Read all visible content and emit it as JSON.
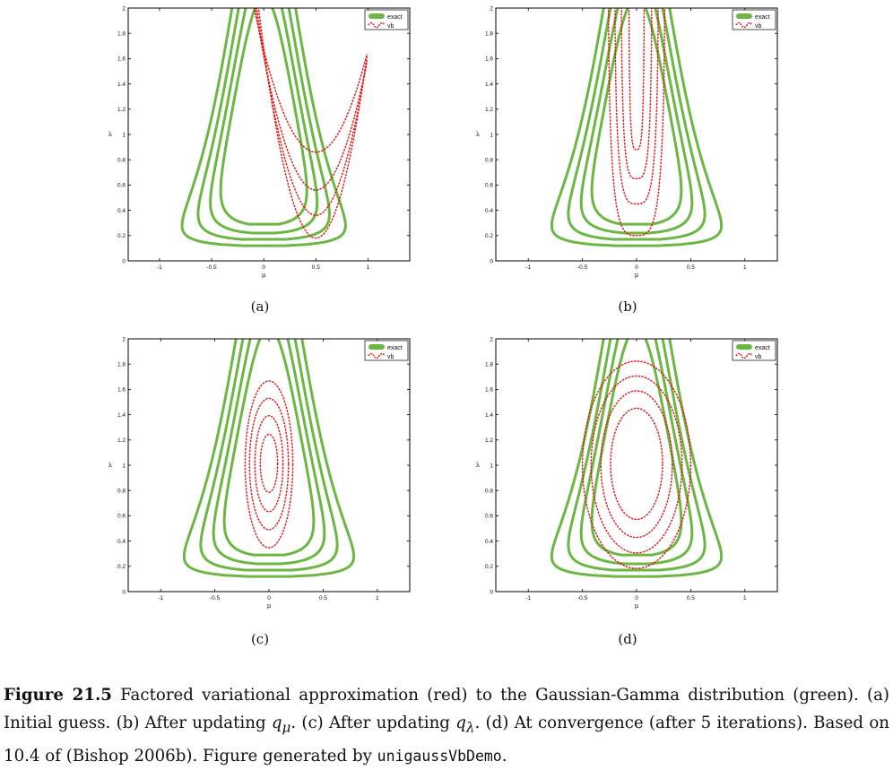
{
  "figure": {
    "colors": {
      "exact": "#6cb644",
      "vb": "#e01818",
      "axis": "#000000"
    },
    "panels": [
      {
        "label": "(a)",
        "xlabel": "μ",
        "ylabel": "λ",
        "xticks": [
          "-1",
          "-0.5",
          "0",
          "0.5",
          "1"
        ],
        "yticks": [
          "0",
          "0.2",
          "0.4",
          "0.6",
          "0.8",
          "1",
          "1.2",
          "1.4",
          "1.6",
          "1.8",
          "2"
        ],
        "legend": [
          "exact",
          "vb"
        ],
        "chart_data": {
          "type": "contour",
          "xlim": [
            -1.3,
            1.4
          ],
          "ylim": [
            0,
            2
          ],
          "exact": {
            "mode_lambda": 0.9,
            "levels": [
              0.35,
              0.45,
              0.55,
              0.65
            ],
            "mu0": 0,
            "kappa": 1
          },
          "vb": {
            "shape": "u-curves",
            "min_mu": 0.5,
            "min_lambda": [
              0.18,
              0.36,
              0.56,
              0.86
            ],
            "x_end": 1.0
          }
        }
      },
      {
        "label": "(b)",
        "xlabel": "μ",
        "ylabel": "λ",
        "xticks": [
          "-1",
          "-0.5",
          "0",
          "0.5",
          "1"
        ],
        "yticks": [
          "0",
          "0.2",
          "0.4",
          "0.6",
          "0.8",
          "1",
          "1.2",
          "1.4",
          "1.6",
          "1.8",
          "2"
        ],
        "legend": [
          "exact",
          "vb"
        ],
        "chart_data": {
          "type": "contour",
          "xlim": [
            -1.3,
            1.3
          ],
          "ylim": [
            0,
            2
          ],
          "exact": {
            "mode_lambda": 0.9,
            "levels": [
              0.35,
              0.45,
              0.55,
              0.65
            ],
            "mu0": 0,
            "kappa": 1
          },
          "vb": {
            "shape": "narrow-u",
            "min_lambda": [
              0.2,
              0.45,
              0.65,
              0.88
            ],
            "halfwidth": [
              0.26,
              0.2,
              0.14,
              0.07
            ]
          }
        }
      },
      {
        "label": "(c)",
        "xlabel": "μ",
        "ylabel": "λ",
        "xticks": [
          "-1",
          "-0.5",
          "0",
          "0.5",
          "1"
        ],
        "yticks": [
          "0",
          "0.2",
          "0.4",
          "0.6",
          "0.8",
          "1",
          "1.2",
          "1.4",
          "1.6",
          "1.8",
          "2"
        ],
        "legend": [
          "exact",
          "vb"
        ],
        "chart_data": {
          "type": "contour",
          "xlim": [
            -1.3,
            1.3
          ],
          "ylim": [
            0,
            2
          ],
          "exact": {
            "mode_lambda": 0.9,
            "levels": [
              0.35,
              0.45,
              0.55,
              0.65
            ],
            "mu0": 0,
            "kappa": 1
          },
          "vb": {
            "shape": "ellipse",
            "center_lambda": 1.0,
            "ellipses": [
              [
                0.22,
                0.66
              ],
              [
                0.18,
                0.52
              ],
              [
                0.13,
                0.38
              ],
              [
                0.08,
                0.23
              ]
            ]
          }
        }
      },
      {
        "label": "(d)",
        "xlabel": "μ",
        "ylabel": "λ",
        "xticks": [
          "-1",
          "-0.5",
          "0",
          "0.5",
          "1"
        ],
        "yticks": [
          "0",
          "0.2",
          "0.4",
          "0.6",
          "0.8",
          "1",
          "1.2",
          "1.4",
          "1.6",
          "1.8",
          "2"
        ],
        "legend": [
          "exact",
          "vb"
        ],
        "chart_data": {
          "type": "contour",
          "xlim": [
            -1.3,
            1.3
          ],
          "ylim": [
            0,
            2
          ],
          "exact": {
            "mode_lambda": 0.9,
            "levels": [
              0.35,
              0.45,
              0.55,
              0.65
            ],
            "mu0": 0,
            "kappa": 1
          },
          "vb": {
            "shape": "ellipse",
            "center_lambda": 1.0,
            "ellipses": [
              [
                0.5,
                0.82
              ],
              [
                0.42,
                0.7
              ],
              [
                0.33,
                0.58
              ],
              [
                0.24,
                0.44
              ]
            ]
          }
        }
      }
    ]
  },
  "caption": {
    "label": "Figure 21.5",
    "text_before": "  Factored variational approximation (red) to the Gaussian-Gamma distribution (green).  (a) Initial guess. (b) After updating ",
    "q_mu": "q",
    "q_mu_sub": "μ",
    "text_mid": ". (c) After updating ",
    "q_lambda": "q",
    "q_lambda_sub": "λ",
    "text_after": ". (d) At convergence (after 5 iterations). Based on 10.4 of (Bishop 2006b). Figure generated by ",
    "code": "unigaussVbDemo",
    "end": "."
  }
}
